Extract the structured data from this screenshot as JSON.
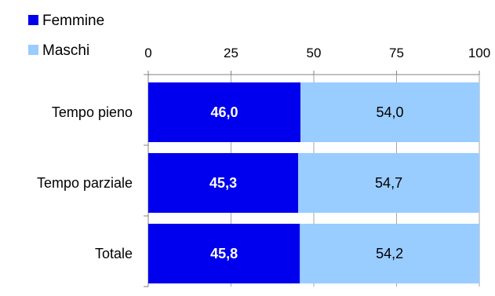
{
  "chart_data": {
    "type": "bar",
    "orientation": "horizontal",
    "stacked": true,
    "percent_scale": true,
    "categories": [
      "Tempo pieno",
      "Tempo parziale",
      "Totale"
    ],
    "series": [
      {
        "name": "Femmine",
        "values": [
          46.0,
          45.3,
          45.8
        ],
        "labels": [
          "46,0",
          "45,3",
          "45,8"
        ],
        "color": "#0000ee",
        "label_color": "#ffffff",
        "label_bold": true
      },
      {
        "name": "Maschi",
        "values": [
          54.0,
          54.7,
          54.2
        ],
        "labels": [
          "54,0",
          "54,7",
          "54,2"
        ],
        "color": "#99ccff",
        "label_color": "#000000",
        "label_bold": false
      }
    ],
    "xlim": [
      0,
      100
    ],
    "x_ticks": [
      0,
      25,
      50,
      75,
      100
    ],
    "x_tick_labels": [
      "0",
      "25",
      "50",
      "75",
      "100"
    ],
    "x_axis_position": "top",
    "grid": true,
    "legend_position": "top-left"
  }
}
